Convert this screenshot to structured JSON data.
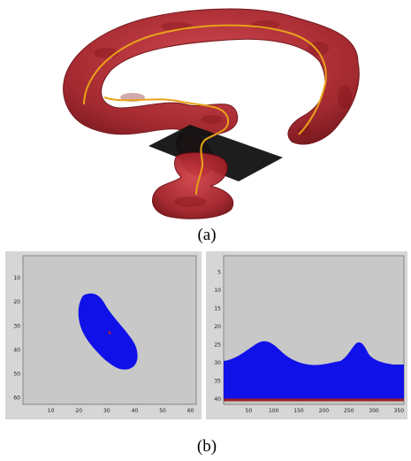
{
  "figure": {
    "caption_a": "(a)",
    "caption_b": "(b)"
  },
  "panel_left": {
    "x_ticks": [
      "10",
      "20",
      "30",
      "40",
      "50",
      "60"
    ],
    "y_ticks": [
      "10",
      "20",
      "30",
      "40",
      "50",
      "60"
    ]
  },
  "panel_right": {
    "x_ticks": [
      "50",
      "100",
      "150",
      "200",
      "250",
      "300",
      "350"
    ],
    "y_ticks": [
      "5",
      "10",
      "15",
      "20",
      "25",
      "30",
      "35",
      "40"
    ]
  },
  "colors": {
    "organ": "#b0262c",
    "organ_dark": "#7a1015",
    "centerline": "#e8a21a",
    "plane": "#111111",
    "mask_fill": "#1010e8",
    "background": "#c8c8c8"
  }
}
